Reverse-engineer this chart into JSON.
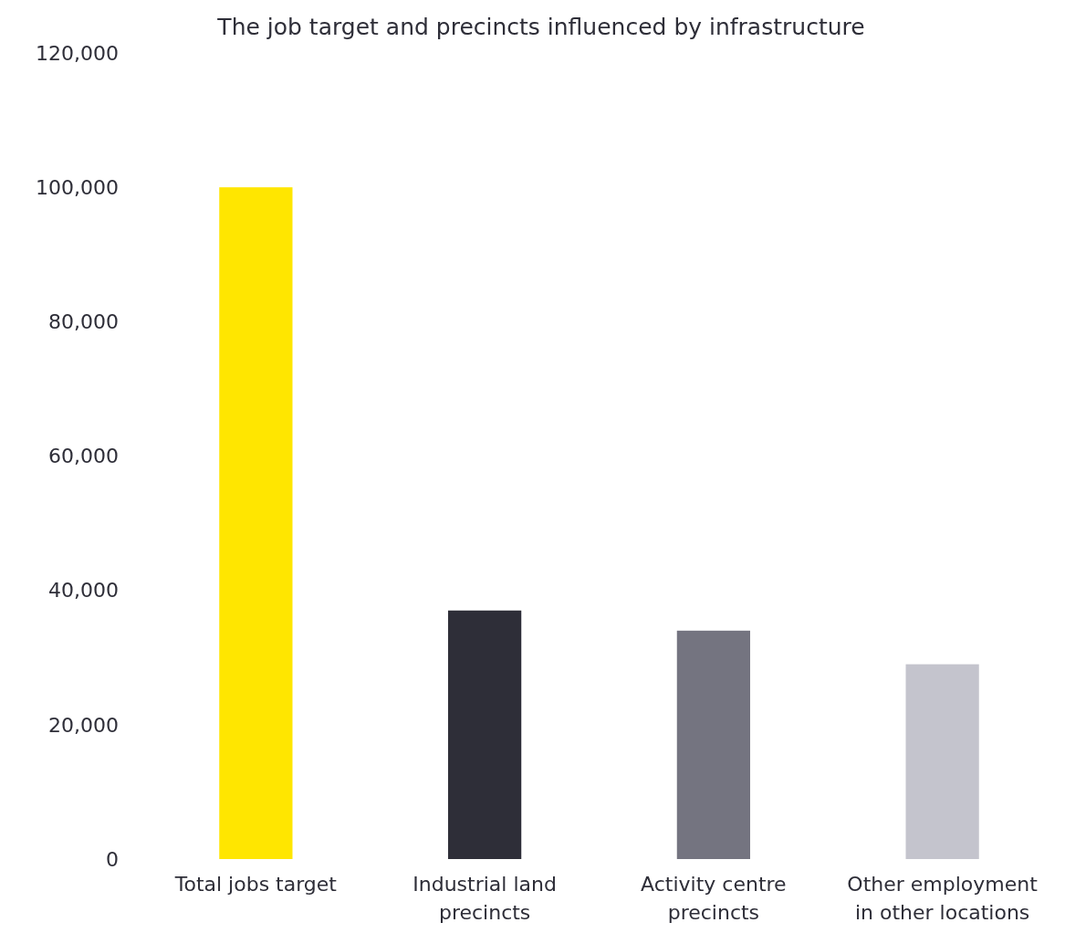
{
  "chart_data": {
    "type": "bar",
    "title": "The job target and precincts influenced by infrastructure",
    "categories": [
      "Total jobs target",
      "Industrial land precincts",
      "Activity centre precincts",
      "Other employment in other locations"
    ],
    "values": [
      100000,
      37000,
      34000,
      29000
    ],
    "colors": [
      "#ffe600",
      "#2e2e38",
      "#747480",
      "#c4c4cd"
    ],
    "ylim": [
      0,
      120000
    ],
    "yticks": [
      0,
      {
        "value": 20000,
        "label": "20,000"
      },
      {
        "value": 40000,
        "label": "40,000"
      },
      {
        "value": 60000,
        "label": "60,000"
      },
      {
        "value": 80000,
        "label": "80,000"
      },
      {
        "value": 100000,
        "label": "100,000"
      },
      {
        "value": 120000,
        "label": "120,000"
      }
    ],
    "grid": false
  }
}
